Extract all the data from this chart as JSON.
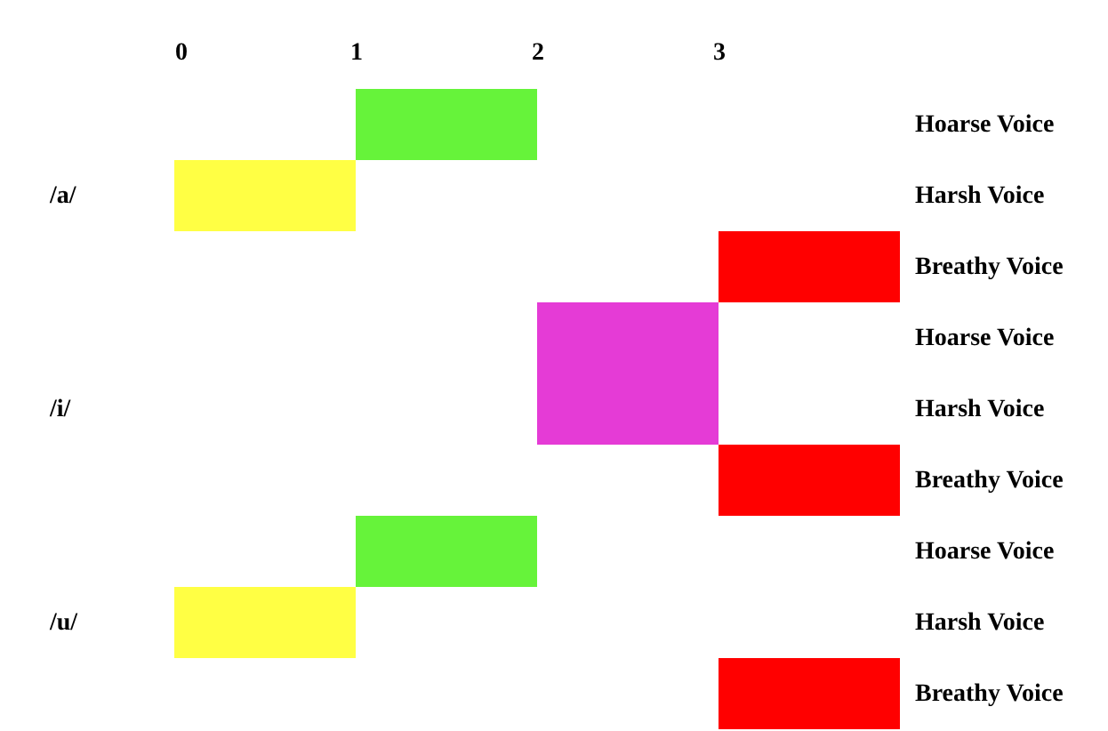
{
  "chart_data": {
    "type": "bar",
    "orientation": "horizontal",
    "categories": [
      "Hoarse Voice",
      "Harsh Voice",
      "Breathy Voice",
      "Hoarse Voice",
      "Harsh Voice",
      "Breathy Voice",
      "Hoarse Voice",
      "Harsh Voice",
      "Breathy Voice"
    ],
    "base": [
      1,
      0,
      3,
      2,
      2,
      3,
      1,
      0,
      3
    ],
    "values": [
      1,
      1,
      1,
      1,
      1,
      1,
      1,
      1,
      1
    ],
    "colors": [
      "#66f33a",
      "#ffff44",
      "#ff0000",
      "#e53bd6",
      "#e53bd6",
      "#ff0000",
      "#66f33a",
      "#ffff44",
      "#ff0000"
    ],
    "xlim": [
      0,
      4
    ],
    "xticks": [
      0,
      1,
      2,
      3
    ],
    "annotations": [
      "/a/",
      "/i/",
      "/u/"
    ],
    "grid": false
  }
}
